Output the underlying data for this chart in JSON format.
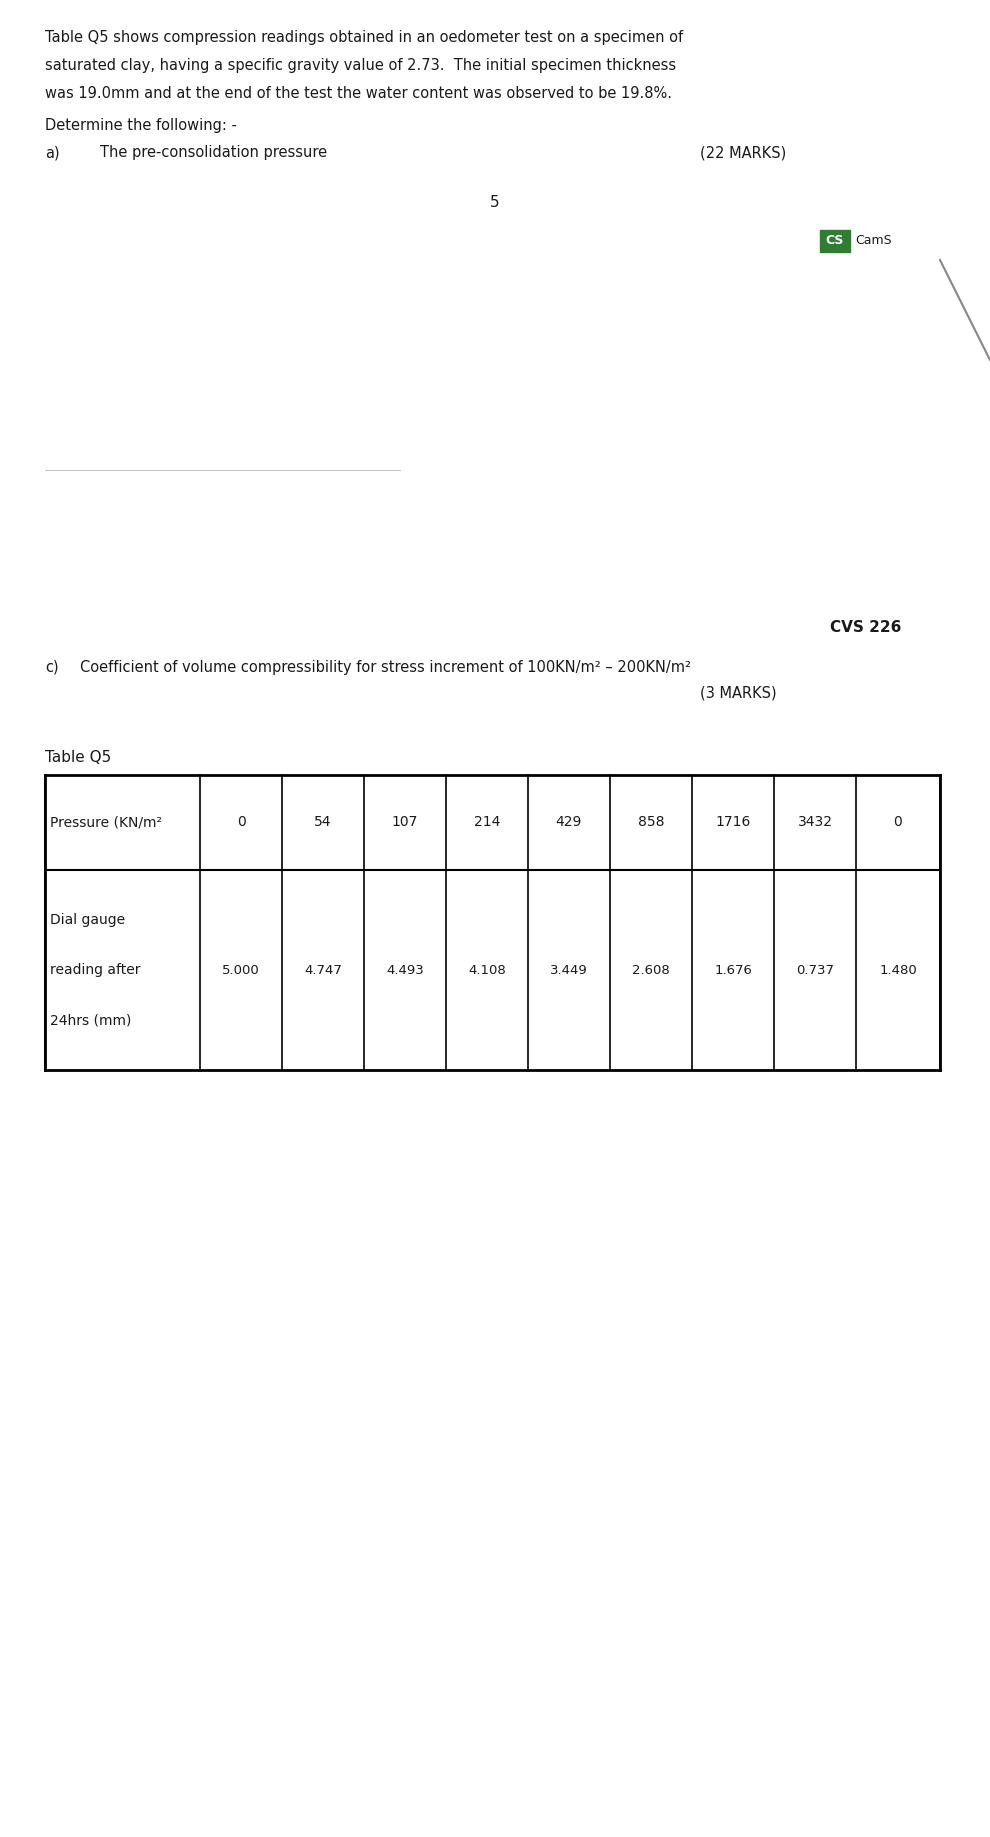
{
  "intro_text_line1": "Table Q5 shows compression readings obtained in an oedometer test on a specimen of",
  "intro_text_line2": "saturated clay, having a specific gravity value of 2.73.  The initial specimen thickness",
  "intro_text_line3": "was 19.0mm and at the end of the test the water content was observed to be 19.8%.",
  "determine_text": "Determine the following: -",
  "part_a_label": "a)",
  "part_a_text": "The pre-consolidation pressure",
  "part_a_marks": "(22 MARKS)",
  "page_number": "5",
  "course_code": "CVS 226",
  "part_c_label": "c)",
  "part_c_text": "Coefficient of volume compressibility for stress increment of 100KN/m² – 200KN/m²",
  "part_c_marks": "(3 MARKS)",
  "table_title": "Table Q5",
  "pressure_header": "Pressure (KN/m²",
  "pressure_values": [
    "0",
    "54",
    "107",
    "214",
    "429",
    "858",
    "1716",
    "3432",
    "0"
  ],
  "dial_gauge_label_line1": "Dial gauge",
  "dial_gauge_label_line2": "reading after",
  "dial_gauge_label_line3": "24hrs (mm)",
  "dial_gauge_values": [
    "5.000",
    "4.747",
    "4.493",
    "4.108",
    "3.449",
    "2.608",
    "1.676",
    "0.737",
    "1.480"
  ],
  "bg_color": "#ffffff",
  "text_color": "#1a1a1a",
  "table_line_color": "#000000",
  "logo_box_color": "#2e7d32",
  "logo_text_color": "#ffffff"
}
